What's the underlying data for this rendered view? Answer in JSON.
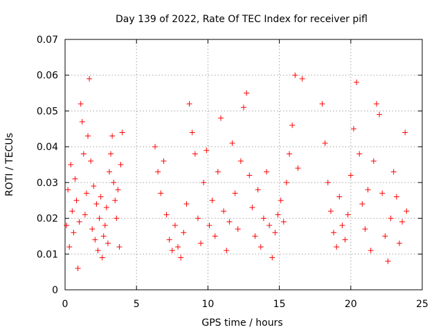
{
  "chart_data": {
    "type": "scatter",
    "title": "Day 139 of 2022, Rate Of TEC Index for receiver pifl",
    "xlabel": "GPS time / hours",
    "ylabel": "ROTI / TECUs",
    "xlim": [
      0,
      25
    ],
    "ylim": [
      0,
      0.07
    ],
    "x_ticks": [
      "0",
      "5",
      "10",
      "15",
      "20",
      "25"
    ],
    "y_ticks": [
      "0",
      "0.01",
      "0.02",
      "0.03",
      "0.04",
      "0.05",
      "0.06",
      "0.07"
    ],
    "grid": true,
    "marker": "+",
    "color": "#ff0000",
    "series": [
      {
        "points": [
          [
            0.1,
            0.018
          ],
          [
            0.2,
            0.028
          ],
          [
            0.3,
            0.012
          ],
          [
            0.4,
            0.035
          ],
          [
            0.5,
            0.022
          ],
          [
            0.6,
            0.016
          ],
          [
            0.7,
            0.031
          ],
          [
            0.8,
            0.025
          ],
          [
            0.9,
            0.006
          ],
          [
            1.0,
            0.019
          ],
          [
            1.1,
            0.052
          ],
          [
            1.2,
            0.047
          ],
          [
            1.3,
            0.038
          ],
          [
            1.4,
            0.021
          ],
          [
            1.5,
            0.027
          ],
          [
            1.6,
            0.043
          ],
          [
            1.7,
            0.059
          ],
          [
            1.8,
            0.036
          ],
          [
            1.9,
            0.017
          ],
          [
            2.0,
            0.029
          ],
          [
            2.1,
            0.014
          ],
          [
            2.2,
            0.024
          ],
          [
            2.3,
            0.011
          ],
          [
            2.4,
            0.02
          ],
          [
            2.5,
            0.026
          ],
          [
            2.6,
            0.009
          ],
          [
            2.7,
            0.015
          ],
          [
            2.8,
            0.018
          ],
          [
            2.9,
            0.023
          ],
          [
            3.0,
            0.013
          ],
          [
            3.1,
            0.033
          ],
          [
            3.2,
            0.038
          ],
          [
            3.3,
            0.043
          ],
          [
            3.4,
            0.03
          ],
          [
            3.5,
            0.025
          ],
          [
            3.6,
            0.02
          ],
          [
            3.7,
            0.028
          ],
          [
            3.8,
            0.012
          ],
          [
            3.9,
            0.035
          ],
          [
            4.0,
            0.044
          ],
          [
            6.3,
            0.04
          ],
          [
            6.5,
            0.033
          ],
          [
            6.7,
            0.027
          ],
          [
            6.9,
            0.036
          ],
          [
            7.1,
            0.021
          ],
          [
            7.3,
            0.014
          ],
          [
            7.5,
            0.011
          ],
          [
            7.7,
            0.018
          ],
          [
            7.9,
            0.012
          ],
          [
            8.1,
            0.009
          ],
          [
            8.3,
            0.016
          ],
          [
            8.5,
            0.024
          ],
          [
            8.7,
            0.052
          ],
          [
            8.9,
            0.044
          ],
          [
            9.1,
            0.038
          ],
          [
            9.3,
            0.02
          ],
          [
            9.5,
            0.013
          ],
          [
            9.7,
            0.03
          ],
          [
            9.9,
            0.039
          ],
          [
            10.1,
            0.018
          ],
          [
            10.3,
            0.025
          ],
          [
            10.5,
            0.015
          ],
          [
            10.7,
            0.033
          ],
          [
            10.9,
            0.048
          ],
          [
            11.1,
            0.022
          ],
          [
            11.3,
            0.011
          ],
          [
            11.5,
            0.019
          ],
          [
            11.7,
            0.041
          ],
          [
            11.9,
            0.027
          ],
          [
            12.1,
            0.017
          ],
          [
            12.3,
            0.036
          ],
          [
            12.5,
            0.051
          ],
          [
            12.7,
            0.055
          ],
          [
            12.9,
            0.032
          ],
          [
            13.1,
            0.023
          ],
          [
            13.3,
            0.015
          ],
          [
            13.5,
            0.028
          ],
          [
            13.7,
            0.012
          ],
          [
            13.9,
            0.02
          ],
          [
            14.1,
            0.033
          ],
          [
            14.3,
            0.018
          ],
          [
            14.5,
            0.009
          ],
          [
            14.7,
            0.016
          ],
          [
            14.9,
            0.021
          ],
          [
            15.1,
            0.025
          ],
          [
            15.3,
            0.019
          ],
          [
            15.5,
            0.03
          ],
          [
            15.7,
            0.038
          ],
          [
            15.9,
            0.046
          ],
          [
            16.1,
            0.06
          ],
          [
            16.3,
            0.034
          ],
          [
            16.6,
            0.059
          ],
          [
            18.0,
            0.052
          ],
          [
            18.2,
            0.041
          ],
          [
            18.4,
            0.03
          ],
          [
            18.6,
            0.022
          ],
          [
            18.8,
            0.016
          ],
          [
            19.0,
            0.012
          ],
          [
            19.2,
            0.026
          ],
          [
            19.4,
            0.018
          ],
          [
            19.6,
            0.014
          ],
          [
            19.8,
            0.021
          ],
          [
            20.0,
            0.032
          ],
          [
            20.2,
            0.045
          ],
          [
            20.4,
            0.058
          ],
          [
            20.6,
            0.038
          ],
          [
            20.8,
            0.024
          ],
          [
            21.0,
            0.017
          ],
          [
            21.2,
            0.028
          ],
          [
            21.4,
            0.011
          ],
          [
            21.6,
            0.036
          ],
          [
            21.8,
            0.052
          ],
          [
            22.0,
            0.049
          ],
          [
            22.2,
            0.027
          ],
          [
            22.4,
            0.015
          ],
          [
            22.6,
            0.008
          ],
          [
            22.8,
            0.02
          ],
          [
            23.0,
            0.033
          ],
          [
            23.2,
            0.026
          ],
          [
            23.4,
            0.013
          ],
          [
            23.6,
            0.019
          ],
          [
            23.8,
            0.044
          ],
          [
            23.9,
            0.022
          ]
        ]
      }
    ]
  }
}
